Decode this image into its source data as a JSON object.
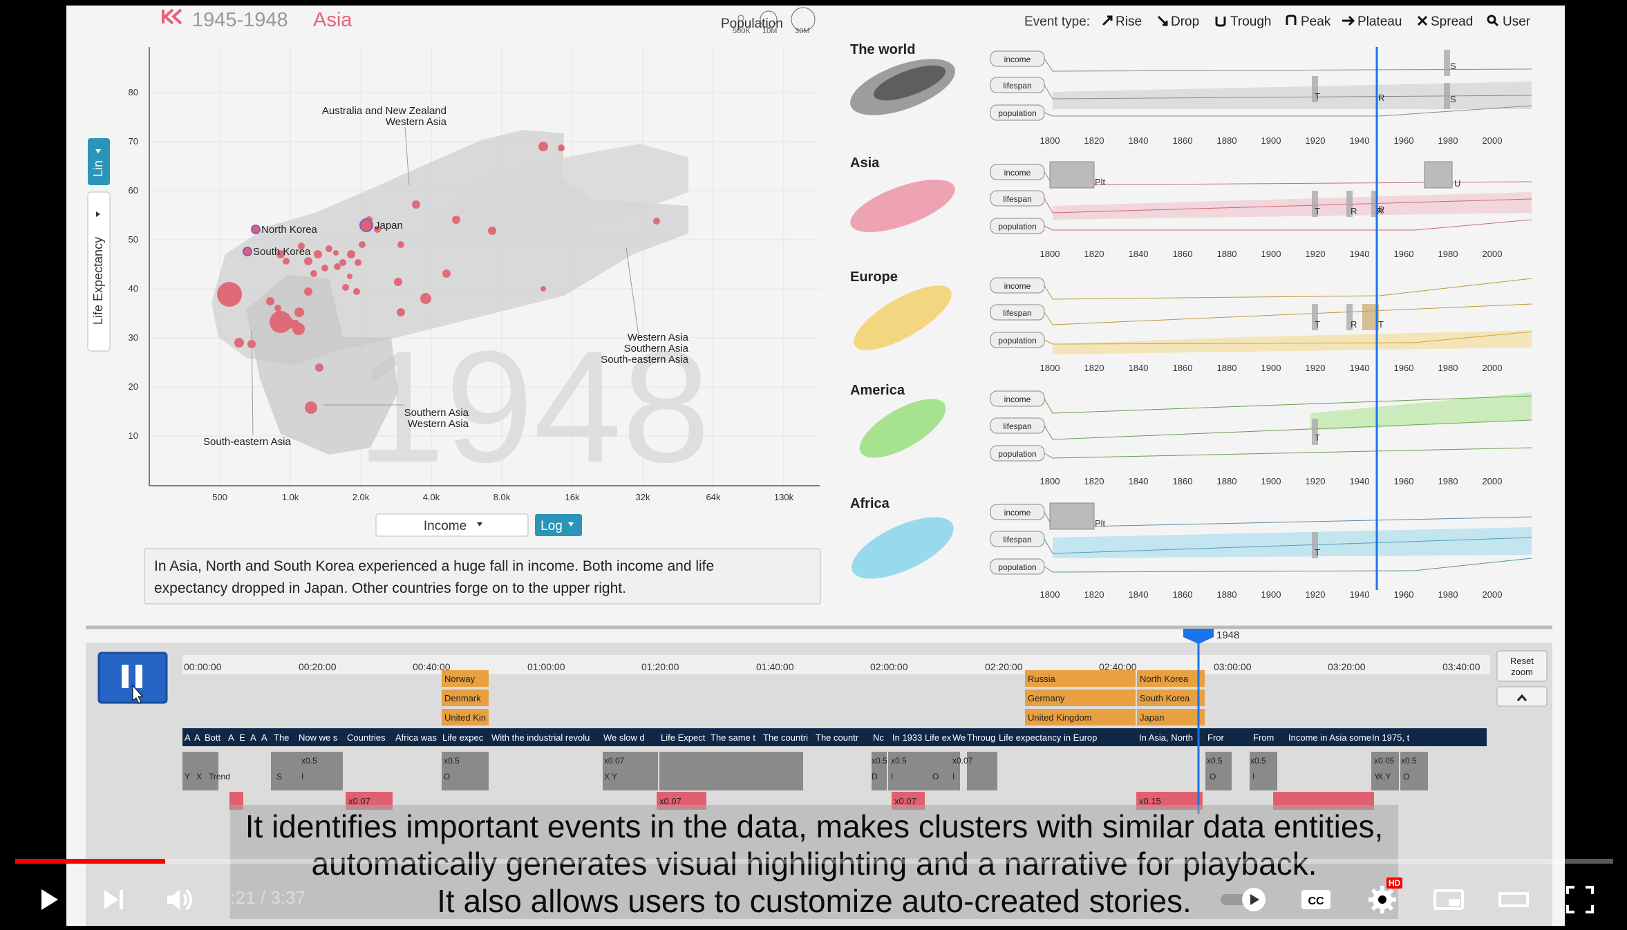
{
  "header": {
    "period": "1945-1948",
    "region": "Asia",
    "population_label": "Population",
    "pop_sizes": [
      "500K",
      "10M",
      "30M"
    ],
    "event_type_label": "Event type:",
    "event_types": [
      "Rise",
      "Drop",
      "Trough",
      "Peak",
      "Plateau",
      "Spread",
      "User"
    ]
  },
  "scatter": {
    "big_year": "1948",
    "y_ticks": [
      "80",
      "70",
      "60",
      "50",
      "40",
      "30",
      "20",
      "10"
    ],
    "x_ticks": [
      "500",
      "1.0k",
      "2.0k",
      "4.0k",
      "8.0k",
      "16k",
      "32k",
      "64k",
      "130k"
    ],
    "y_toggle": "Lin",
    "y_axis_label": "Life Expectancy",
    "x_select": "Income",
    "x_scale": "Log",
    "labels": {
      "aus": "Australia and New Zealand",
      "wasia1": "Western Asia",
      "nkorea": "North Korea",
      "skorea": "South Korea",
      "japan": "Japan",
      "wasia2": "Western Asia",
      "sasia2": "Southern Asia",
      "seasia2": "South-eastern Asia",
      "sasia3": "Southern Asia",
      "wasia3": "Western Asia",
      "seasia1": "South-eastern Asia"
    }
  },
  "narrative": {
    "line1": "In Asia, North and South Korea experienced a huge fall in income. Both income and life",
    "line2": "expectancy dropped in Japan. Other countries forge on to the upper right."
  },
  "timeline_panel": {
    "years": [
      "1800",
      "1820",
      "1840",
      "1860",
      "1880",
      "1900",
      "1920",
      "1940",
      "1960",
      "1980",
      "2000"
    ],
    "row_labels": [
      "income",
      "lifespan",
      "population"
    ],
    "regions": [
      {
        "name": "The world",
        "color": "#555555"
      },
      {
        "name": "Asia",
        "color": "#e8607a"
      },
      {
        "name": "Europe",
        "color": "#f2c230"
      },
      {
        "name": "America",
        "color": "#7ed957"
      },
      {
        "name": "Africa",
        "color": "#4fc3e8"
      }
    ],
    "event_marks": [
      "S",
      "R",
      "S",
      "T",
      "R",
      "Plt",
      "U",
      "T",
      "R",
      "R",
      "T",
      "R",
      "T",
      "T",
      "Plt",
      "T"
    ]
  },
  "story_editor": {
    "current_marker": "1948",
    "times": [
      "00:00:00",
      "00:20:00",
      "00:40:00",
      "01:00:00",
      "01:20:00",
      "01:40:00",
      "02:00:00",
      "02:20:00",
      "02:40:00",
      "03:00:00",
      "03:20:00",
      "03:40:00"
    ],
    "reset_zoom": [
      "Reset",
      "zoom"
    ],
    "countries_a": [
      "Norway",
      "Denmark",
      "United Kin"
    ],
    "countries_b": [
      "Russia",
      "Germany",
      "United Kingdom"
    ],
    "countries_c": [
      "North Korea",
      "South Korea",
      "Japan"
    ],
    "narr_blocks": [
      "A",
      "A",
      "Bott",
      "A",
      "E",
      "A",
      "A",
      "The",
      "Now we s",
      "Countries",
      "Africa was",
      "Life expec",
      "With the industrial revolu",
      "We slow d",
      "Life Expect",
      "The same t",
      "The countri",
      "The countr",
      "Nc",
      "In 1933",
      "Life ex",
      "We",
      "Throug",
      "Life expectancy in Europ",
      "In Asia, North",
      "Fror",
      "From",
      "Income in Asia some",
      "In 1975, t"
    ],
    "speeds": [
      "x0.5",
      "x0.5",
      "x0.07",
      "x0.5",
      "x0.5",
      "x0.07",
      "x0.5",
      "x0.05",
      "x0.5",
      "x0.5",
      "x0.07",
      "x0.07",
      "x0.07",
      "x0.15"
    ],
    "tiny": [
      "Y",
      "X",
      "Trend",
      "S",
      "I",
      "O",
      "X Y",
      "D",
      "I",
      "O",
      "I",
      "O",
      "Y",
      "I",
      "O",
      "I",
      "X,Y",
      "O"
    ]
  },
  "caption": {
    "line1": "It identifies important events in the data, makes clusters with similar data entities,",
    "line2": "automatically generates visual highlighting and a narrative for playback.",
    "line3": "It also allows users to customize auto-created stories."
  },
  "player": {
    "time_current": "0:21",
    "time_total": "3:37",
    "time_sep": "/",
    "hd_badge": "HD",
    "progress": 0.094
  },
  "colors": {
    "accent": "#1a73e8",
    "youtube_red": "#ff0000",
    "asia": "#e8607a",
    "playhead": "#1a73e8"
  }
}
